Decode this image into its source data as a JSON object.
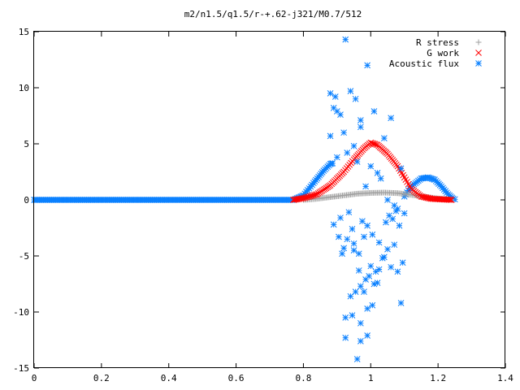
{
  "chart_data": {
    "type": "scatter",
    "title": "m2/n1.5/q1.5/r-+.62-j321/M0.7/512",
    "xlabel": "",
    "ylabel": "",
    "xlim": [
      0,
      1.4
    ],
    "ylim": [
      -15,
      15
    ],
    "xticks": [
      "0",
      "0.2",
      "0.4",
      "0.6",
      "0.8",
      "1",
      "1.2",
      "1.4"
    ],
    "yticks": [
      "15",
      "10",
      "5",
      "0",
      "-5",
      "-10",
      "-15"
    ],
    "grid": false,
    "legend_position": "top-right",
    "series": [
      {
        "name": "R stress",
        "marker": "plus",
        "color": "#a0a0a0",
        "x": [
          0.8,
          0.84,
          0.88,
          0.92,
          0.96,
          1.0,
          1.04,
          1.08,
          1.12,
          1.16,
          1.2,
          1.24
        ],
        "y": [
          0.0,
          0.1,
          0.25,
          0.4,
          0.55,
          0.62,
          0.65,
          0.6,
          0.45,
          0.28,
          0.12,
          0.02
        ]
      },
      {
        "name": "G work",
        "marker": "cross",
        "color": "#ff0000",
        "x": [
          0.77,
          0.8,
          0.84,
          0.88,
          0.92,
          0.95,
          0.98,
          1.0,
          1.02,
          1.05,
          1.08,
          1.1,
          1.12,
          1.15,
          1.18,
          1.21,
          1.24
        ],
        "y": [
          0.0,
          0.15,
          0.5,
          1.3,
          2.5,
          3.6,
          4.6,
          5.1,
          4.9,
          4.1,
          3.0,
          2.0,
          1.0,
          0.3,
          0.1,
          0.05,
          0.0
        ],
        "spacing": 0.004
      },
      {
        "name": "Acoustic flux",
        "marker": "star",
        "color": "#0a80ff",
        "curve_x": [
          0.0,
          0.77,
          0.8,
          0.83,
          0.86,
          0.88,
          0.89,
          0.89001,
          1.09,
          1.1,
          1.12,
          1.15,
          1.17,
          1.19,
          1.21,
          1.23,
          1.245,
          1.255,
          1.26,
          1.4
        ],
        "curve_y": [
          0.0,
          0.0,
          0.4,
          1.5,
          2.6,
          3.2,
          3.3,
          null,
          null,
          0.3,
          1.2,
          1.9,
          2.0,
          1.8,
          1.2,
          0.5,
          0.1,
          0.0,
          null,
          null
        ],
        "spacing": 0.004,
        "scatter_x": [
          0.925,
          0.88,
          0.89,
          0.895,
          0.9,
          0.91,
          0.94,
          0.955,
          0.97,
          0.99,
          1.01,
          1.04,
          1.06,
          0.97,
          0.93,
          0.95,
          0.92,
          1.0,
          1.02,
          1.09,
          1.05,
          0.88,
          0.9,
          0.96,
          0.985,
          1.03,
          1.07,
          1.08,
          1.1,
          0.91,
          0.935,
          0.945,
          0.975,
          0.99,
          1.005,
          1.025,
          1.045,
          1.055,
          1.065,
          1.075,
          1.085,
          0.89,
          0.905,
          0.92,
          0.95,
          0.965,
          0.98,
          1.0,
          1.015,
          1.035,
          1.05,
          1.06,
          1.07,
          1.08,
          1.095,
          0.915,
          0.93,
          0.95,
          0.965,
          0.985,
          0.995,
          1.01,
          1.025,
          1.04,
          0.98,
          0.94,
          0.955,
          0.97,
          0.99,
          1.005,
          1.02,
          1.09,
          0.925,
          0.945,
          0.97,
          0.99,
          0.96,
          0.97,
          0.925
        ],
        "scatter_y": [
          14.3,
          9.5,
          8.2,
          9.2,
          7.9,
          7.6,
          9.7,
          9.0,
          7.1,
          12.0,
          7.9,
          5.5,
          7.3,
          6.5,
          4.2,
          4.8,
          6.0,
          3.0,
          2.4,
          2.8,
          0.0,
          5.7,
          3.8,
          3.4,
          1.2,
          1.9,
          -0.5,
          -0.8,
          -1.2,
          -1.6,
          -1.1,
          -2.6,
          -1.9,
          -2.3,
          -3.1,
          -3.8,
          -2.0,
          -1.4,
          -1.7,
          -1.0,
          -2.3,
          -2.2,
          -3.3,
          -4.3,
          -3.9,
          -4.8,
          -3.3,
          -5.9,
          -6.4,
          -5.2,
          -4.4,
          -6.0,
          -4.0,
          -6.4,
          -5.6,
          -4.8,
          -3.5,
          -4.5,
          -6.3,
          -7.1,
          -6.8,
          -7.5,
          -6.2,
          -5.1,
          -8.2,
          -8.6,
          -8.2,
          -7.7,
          -9.7,
          -9.4,
          -7.4,
          -9.2,
          -10.5,
          -10.3,
          -11.0,
          -12.1,
          -14.2,
          -12.6,
          -12.3
        ]
      }
    ]
  }
}
